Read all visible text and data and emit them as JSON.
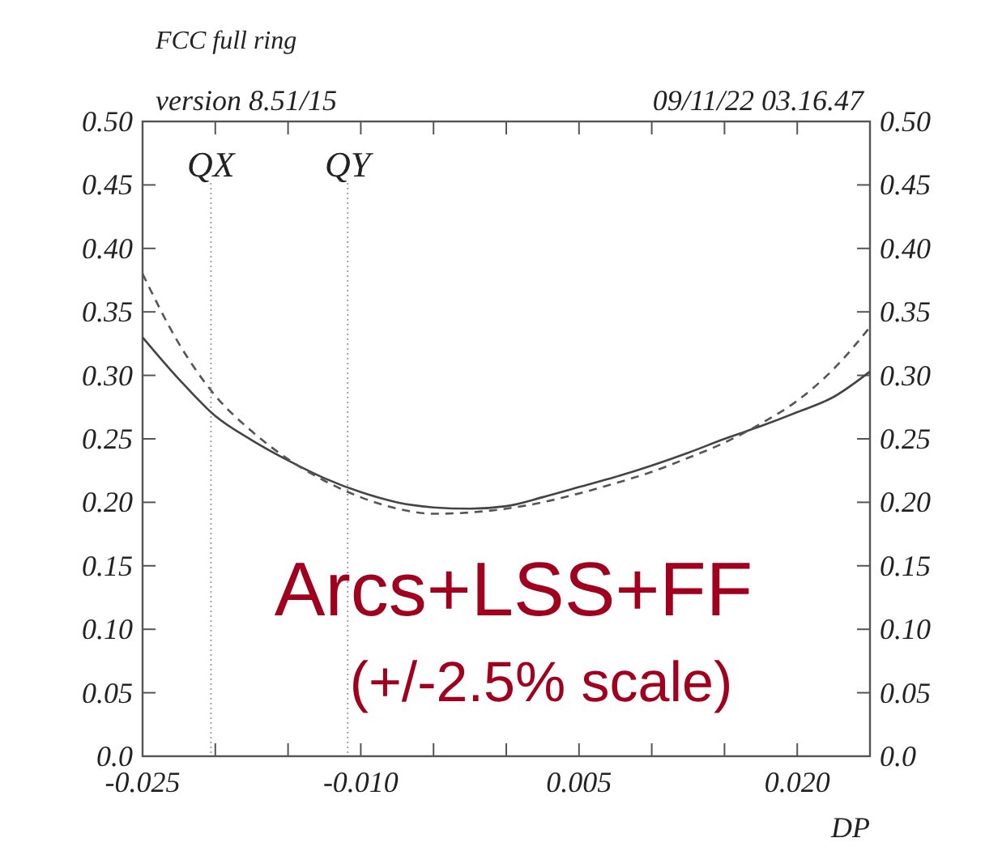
{
  "chart_data": {
    "type": "line",
    "title": "FCC full ring",
    "xlabel": "DP",
    "annotations": [
      "version 8.51/15",
      "09/11/22  03.16.47",
      "Arcs+LSS+FF",
      "(+/-2.5% scale)"
    ],
    "x": [
      -0.025,
      -0.0225,
      -0.02,
      -0.0175,
      -0.015,
      -0.0125,
      -0.01,
      -0.0075,
      -0.005,
      -0.0025,
      0,
      0.0025,
      0.005,
      0.0075,
      0.01,
      0.0125,
      0.015,
      0.0175,
      0.02,
      0.0225,
      0.025
    ],
    "series": [
      {
        "color": "#444444",
        "line_style": "solid",
        "values": [
          0.33,
          0.297,
          0.268,
          0.249,
          0.233,
          0.219,
          0.208,
          0.2,
          0.196,
          0.195,
          0.197,
          0.204,
          0.212,
          0.22,
          0.229,
          0.239,
          0.25,
          0.26,
          0.271,
          0.283,
          0.303
        ]
      },
      {
        "color": "#555555",
        "line_style": "dashed",
        "values": [
          0.38,
          0.325,
          0.284,
          0.256,
          0.234,
          0.217,
          0.204,
          0.195,
          0.191,
          0.192,
          0.195,
          0.2,
          0.207,
          0.215,
          0.224,
          0.235,
          0.247,
          0.262,
          0.28,
          0.305,
          0.338
        ]
      }
    ],
    "xlim": [
      -0.025,
      0.025
    ],
    "xticks": [
      -0.025,
      {
        "value": -0.02,
        "label": null
      },
      {
        "value": -0.015,
        "label": null
      },
      {
        "value": -0.01,
        "label": "-0.010"
      },
      {
        "value": -0.005,
        "label": null
      },
      {
        "value": 0,
        "label": null
      },
      0.005,
      {
        "value": 0.01,
        "label": null
      },
      {
        "value": 0.015,
        "label": null
      },
      {
        "value": 0.02,
        "label": "0.020"
      },
      {
        "value": 0.025,
        "label": null
      }
    ],
    "ylim": [
      0,
      0.5
    ],
    "yticks": [
      {
        "value": 0,
        "label": "0.0"
      },
      0.05,
      {
        "value": 0.1,
        "label": "0.10"
      },
      0.15,
      {
        "value": 0.2,
        "label": "0.20"
      },
      0.25,
      {
        "value": 0.3,
        "label": "0.30"
      },
      0.35,
      {
        "value": 0.4,
        "label": "0.40"
      },
      0.45,
      {
        "value": 0.5,
        "label": "0.50"
      }
    ],
    "y2lim": [
      0,
      0.5
    ],
    "y2ticks": [
      {
        "value": 0,
        "label": "0.0"
      },
      0.05,
      {
        "value": 0.1,
        "label": "0.10"
      },
      0.15,
      {
        "value": 0.2,
        "label": "0.20"
      },
      0.25,
      {
        "value": 0.3,
        "label": "0.30"
      },
      0.35,
      {
        "value": 0.4,
        "label": "0.40"
      },
      0.45,
      {
        "value": 0.5,
        "label": "0.50"
      }
    ],
    "ref_lines": [
      {
        "axis": "x",
        "value": -0.0203,
        "label": "QX",
        "line_style": "dotted"
      },
      {
        "axis": "x",
        "value": -0.0109,
        "label": "QY",
        "line_style": "dotted"
      }
    ],
    "grid": false
  }
}
